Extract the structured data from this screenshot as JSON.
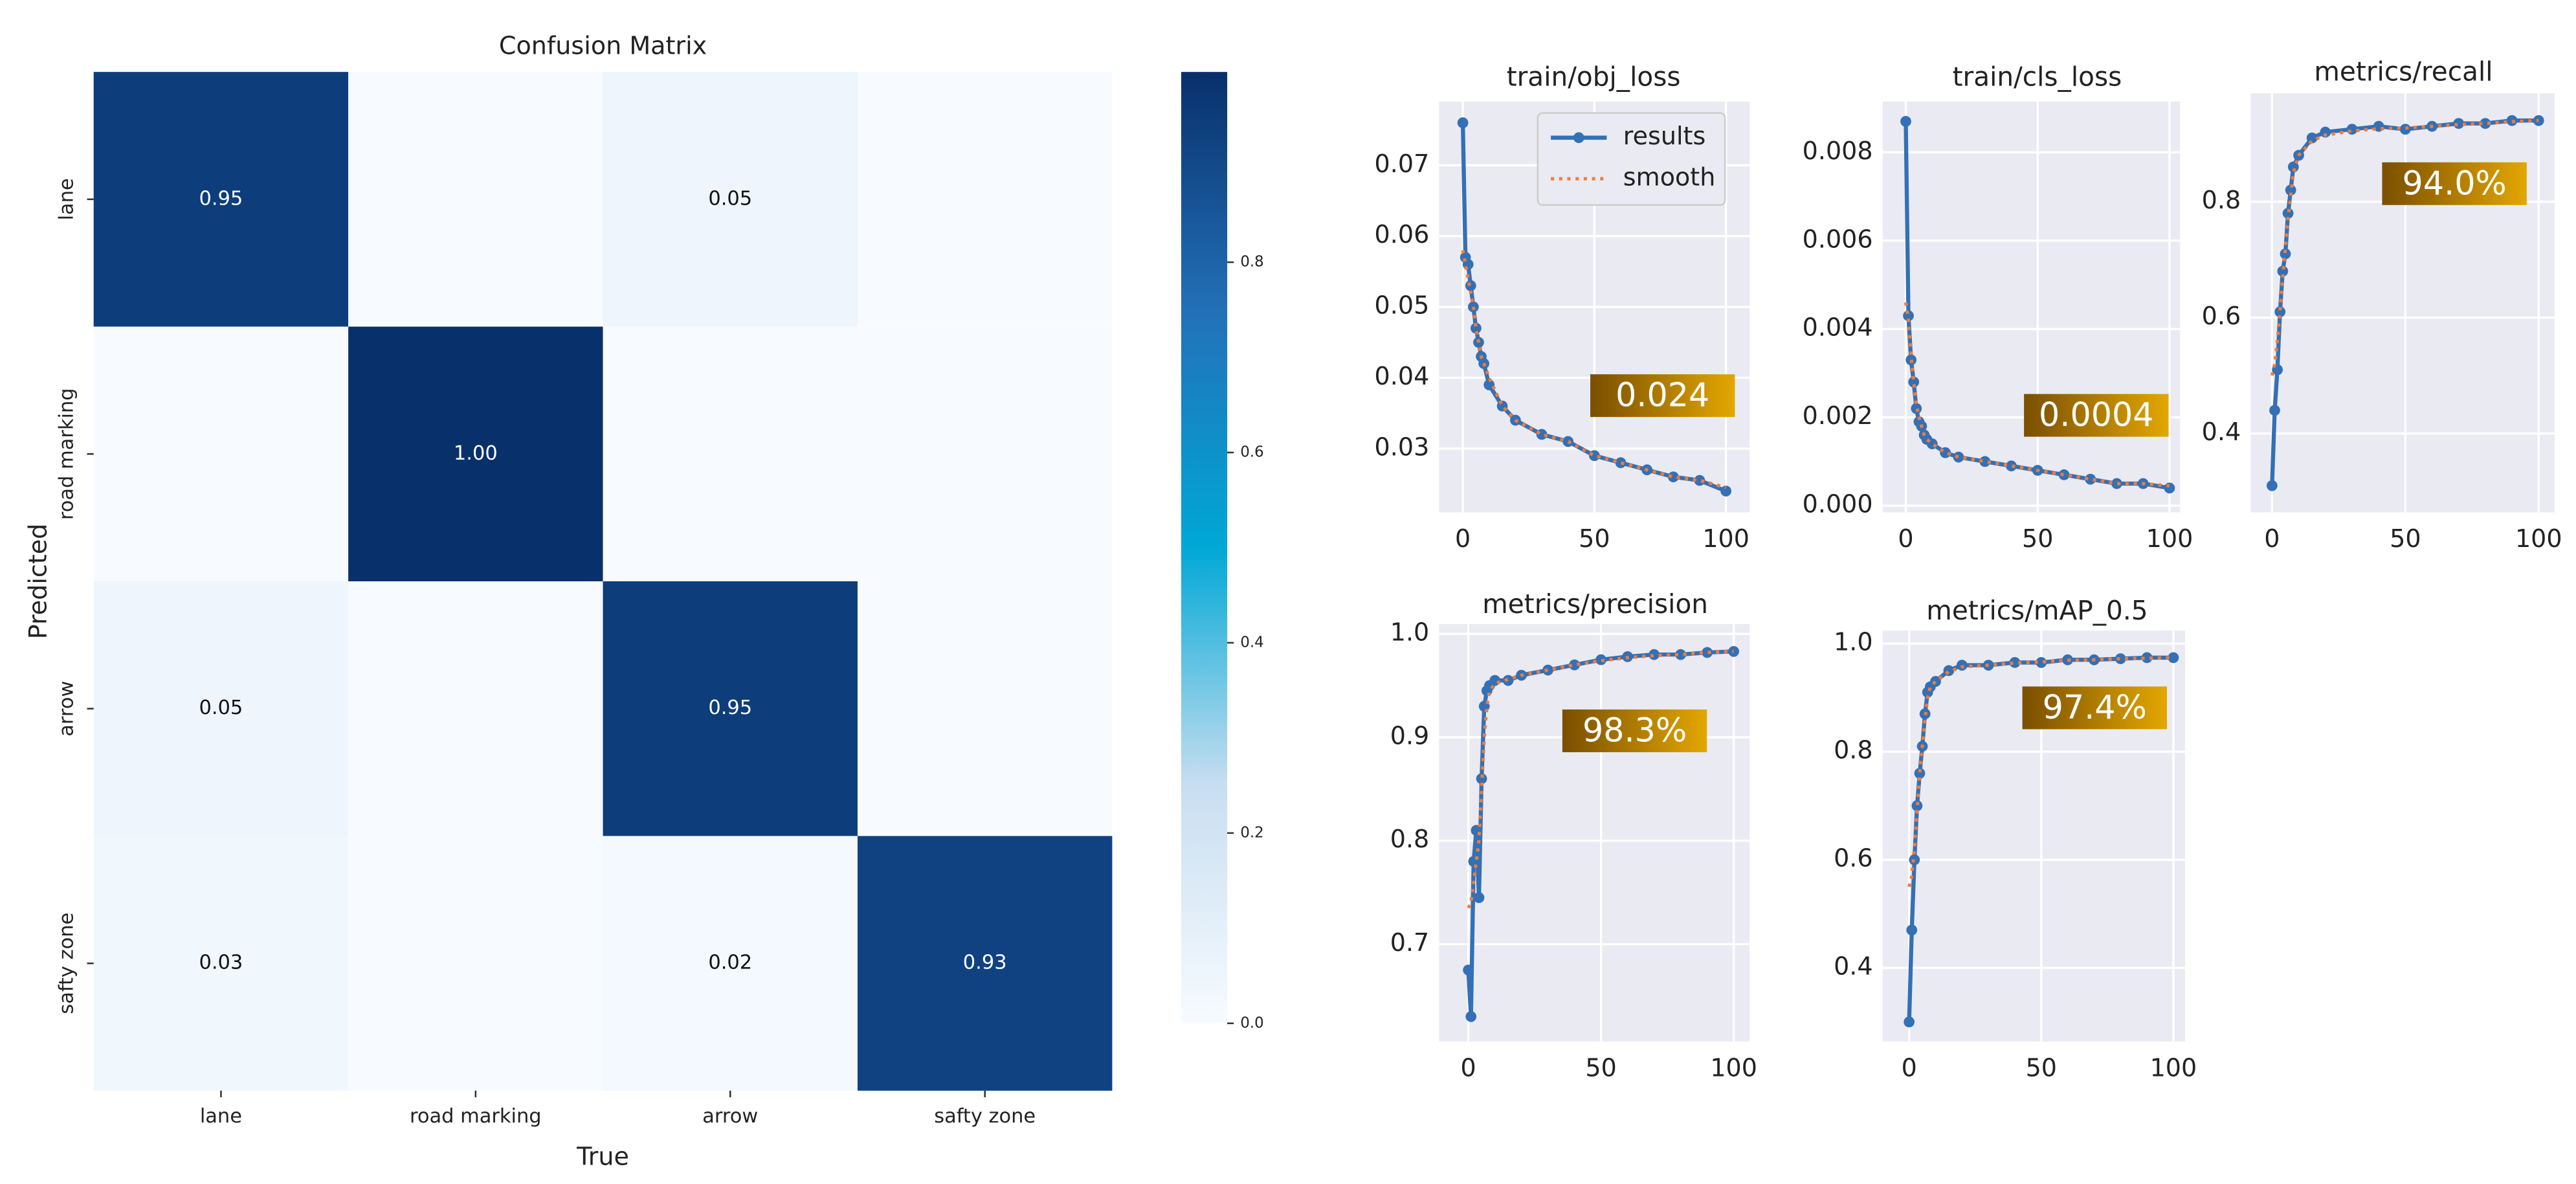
{
  "chart_data": [
    {
      "type": "heatmap",
      "title": "Confusion Matrix",
      "xlabel": "True",
      "ylabel": "Predicted",
      "x_categories": [
        "lane",
        "road marking",
        "arrow",
        "safty zone"
      ],
      "y_categories": [
        "lane",
        "road marking",
        "arrow",
        "safty zone"
      ],
      "values": [
        [
          0.95,
          0,
          0.05,
          0
        ],
        [
          0,
          1,
          0,
          0
        ],
        [
          0.05,
          0,
          0.95,
          0
        ],
        [
          0.03,
          0,
          0.02,
          0.93
        ]
      ],
      "value_labels": [
        [
          "0.95",
          null,
          "0.05",
          null
        ],
        [
          null,
          "1.00",
          null,
          null
        ],
        [
          "0.05",
          null,
          "0.95",
          null
        ],
        [
          "0.03",
          null,
          "0.02",
          "0.93"
        ]
      ],
      "clim": [
        0,
        1
      ],
      "cticks": [
        {
          "value": 0,
          "label": "0.0"
        },
        0.2,
        0.4,
        0.6,
        0.8
      ],
      "colormap": [
        "#f7fbff",
        "#c8def0",
        "#00a8d6",
        "#2370b8",
        "#08306b"
      ]
    },
    {
      "type": "line",
      "title": "train/obj_loss",
      "annotation": "0.024",
      "legend": "upper right",
      "grid": true,
      "x": [
        0,
        1,
        2,
        3,
        4,
        5,
        6,
        7,
        8,
        10,
        15,
        20,
        30,
        40,
        50,
        60,
        70,
        80,
        90,
        100
      ],
      "xlim": [
        -9,
        109
      ],
      "xticks": [
        0,
        50,
        100
      ],
      "ylim": [
        0.021,
        0.079
      ],
      "yticks": [
        0.03,
        0.04,
        0.05,
        0.06,
        0.07
      ],
      "series": [
        {
          "name": "results",
          "color": "#3370b5",
          "values": [
            0.076,
            0.057,
            0.056,
            0.053,
            0.05,
            0.047,
            0.045,
            0.043,
            0.042,
            0.039,
            0.036,
            0.034,
            0.032,
            0.031,
            0.029,
            0.028,
            0.027,
            0.026,
            0.0255,
            0.024
          ]
        },
        {
          "name": "smooth",
          "color": "#f07c3c",
          "values": [
            0.058,
            0.056,
            0.054,
            0.052,
            0.05,
            0.047,
            0.045,
            0.043,
            0.042,
            0.04,
            0.036,
            0.034,
            0.032,
            0.031,
            0.029,
            0.028,
            0.027,
            0.026,
            0.0255,
            0.0245
          ]
        }
      ]
    },
    {
      "type": "line",
      "title": "train/cls_loss",
      "annotation": "0.0004",
      "grid": true,
      "x": [
        0,
        1,
        2,
        3,
        4,
        5,
        6,
        7,
        8,
        10,
        15,
        20,
        30,
        40,
        50,
        60,
        70,
        80,
        90,
        100
      ],
      "xlim": [
        -8.75,
        104
      ],
      "xticks": [
        0,
        50,
        100
      ],
      "ylim": [
        -0.00015,
        0.00915
      ],
      "yticks": [
        {
          "value": 0,
          "label": "0.000"
        },
        0.002,
        0.004,
        0.006,
        0.008
      ],
      "series": [
        {
          "name": "results",
          "color": "#3370b5",
          "values": [
            0.0087,
            0.0043,
            0.0033,
            0.0028,
            0.0022,
            0.0019,
            0.0018,
            0.0016,
            0.0015,
            0.0014,
            0.0012,
            0.0011,
            0.001,
            0.0009,
            0.0008,
            0.0007,
            0.0006,
            0.0005,
            0.0005,
            0.0004
          ]
        },
        {
          "name": "smooth",
          "color": "#f07c3c",
          "values": [
            0.0046,
            0.0042,
            0.0034,
            0.0028,
            0.0023,
            0.002,
            0.0018,
            0.0016,
            0.0015,
            0.0014,
            0.0012,
            0.0011,
            0.001,
            0.0009,
            0.0008,
            0.0007,
            0.0006,
            0.0005,
            0.0005,
            0.00045
          ]
        }
      ]
    },
    {
      "type": "line",
      "title": "metrics/recall",
      "annotation": "94.0%",
      "grid": true,
      "x": [
        0,
        1,
        2,
        3,
        4,
        5,
        6,
        7,
        8,
        10,
        15,
        20,
        30,
        40,
        50,
        60,
        70,
        80,
        90,
        100
      ],
      "xlim": [
        -8,
        106
      ],
      "xticks": [
        0,
        50,
        100
      ],
      "ylim": [
        0.264,
        0.987
      ],
      "yticks": [
        0.4,
        0.6,
        0.8
      ],
      "series": [
        {
          "name": "results",
          "color": "#3370b5",
          "values": [
            0.31,
            0.44,
            0.51,
            0.61,
            0.68,
            0.71,
            0.78,
            0.82,
            0.86,
            0.88,
            0.91,
            0.92,
            0.925,
            0.93,
            0.925,
            0.93,
            0.935,
            0.935,
            0.94,
            0.94
          ]
        },
        {
          "name": "smooth",
          "color": "#f07c3c",
          "values": [
            0.5,
            0.52,
            0.56,
            0.61,
            0.67,
            0.72,
            0.77,
            0.81,
            0.85,
            0.88,
            0.905,
            0.915,
            0.922,
            0.926,
            0.927,
            0.93,
            0.933,
            0.935,
            0.938,
            0.94
          ]
        }
      ]
    },
    {
      "type": "line",
      "title": "metrics/precision",
      "annotation": "98.3%",
      "grid": true,
      "x": [
        0,
        1,
        2,
        3,
        4,
        5,
        6,
        7,
        8,
        10,
        15,
        20,
        30,
        40,
        50,
        60,
        70,
        80,
        90,
        100
      ],
      "xlim": [
        -11,
        106
      ],
      "xticks": [
        0,
        50,
        100
      ],
      "ylim": [
        0.606,
        1.0095
      ],
      "yticks": [
        0.7,
        0.8,
        0.9,
        {
          "value": 1,
          "label": "1.0"
        }
      ],
      "series": [
        {
          "name": "results",
          "color": "#3370b5",
          "values": [
            0.675,
            0.63,
            0.78,
            0.81,
            0.745,
            0.86,
            0.93,
            0.945,
            0.95,
            0.955,
            0.955,
            0.96,
            0.965,
            0.97,
            0.975,
            0.978,
            0.98,
            0.98,
            0.982,
            0.983
          ]
        },
        {
          "name": "smooth",
          "color": "#f07c3c",
          "values": [
            0.735,
            0.74,
            0.76,
            0.78,
            0.8,
            0.85,
            0.9,
            0.93,
            0.945,
            0.952,
            0.956,
            0.96,
            0.965,
            0.97,
            0.974,
            0.977,
            0.979,
            0.98,
            0.982,
            0.983
          ]
        }
      ]
    },
    {
      "type": "line",
      "title": "metrics/mAP_0.5",
      "annotation": "97.4%",
      "grid": true,
      "x": [
        0,
        1,
        2,
        3,
        4,
        5,
        6,
        7,
        8,
        10,
        15,
        20,
        30,
        40,
        50,
        60,
        70,
        80,
        90,
        100
      ],
      "xlim": [
        -10,
        104.4
      ],
      "xticks": [
        0,
        50,
        100
      ],
      "ylim": [
        0.264,
        1.024
      ],
      "yticks": [
        0.4,
        0.6,
        0.8,
        {
          "value": 1,
          "label": "1.0"
        }
      ],
      "series": [
        {
          "name": "results",
          "color": "#3370b5",
          "values": [
            0.3,
            0.47,
            0.6,
            0.7,
            0.76,
            0.81,
            0.87,
            0.91,
            0.92,
            0.93,
            0.95,
            0.96,
            0.96,
            0.965,
            0.965,
            0.97,
            0.97,
            0.972,
            0.974,
            0.974
          ]
        },
        {
          "name": "smooth",
          "color": "#f07c3c",
          "values": [
            0.55,
            0.57,
            0.62,
            0.69,
            0.76,
            0.81,
            0.86,
            0.9,
            0.92,
            0.93,
            0.948,
            0.957,
            0.96,
            0.964,
            0.966,
            0.969,
            0.97,
            0.972,
            0.973,
            0.974
          ]
        }
      ]
    }
  ]
}
